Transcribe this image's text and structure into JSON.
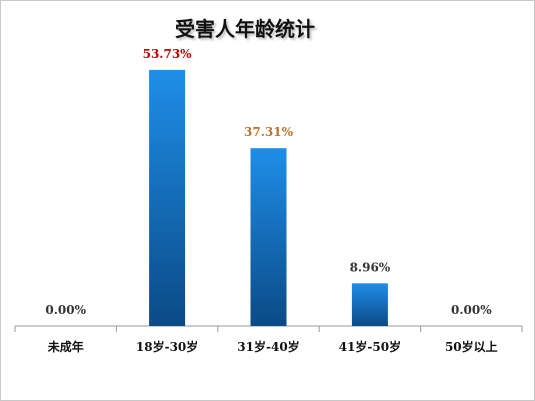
{
  "chart_data": {
    "type": "bar",
    "title": "受害人年龄统计",
    "categories": [
      "未成年",
      "18岁-30岁",
      "31岁-40岁",
      "41岁-50岁",
      "50岁以上"
    ],
    "values": [
      0.0,
      53.73,
      37.31,
      8.96,
      0.0
    ],
    "value_labels": [
      "0.00%",
      "53.73%",
      "37.31%",
      "8.96%",
      "0.00%"
    ],
    "value_label_colors": [
      "#333333",
      "#c00000",
      "#c0702a",
      "#333333",
      "#333333"
    ],
    "ylim": [
      0,
      60
    ],
    "bar_color_top": "#1f8ee8",
    "bar_color_bottom": "#0a4a86",
    "grid": false,
    "legend": "none"
  }
}
